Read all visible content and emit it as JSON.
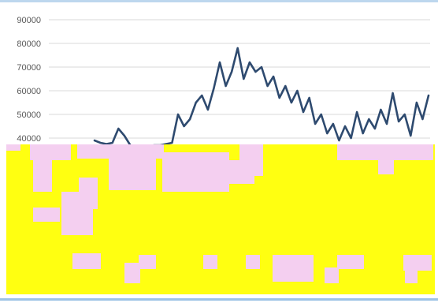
{
  "chart_data": {
    "type": "line",
    "title": "",
    "xlabel": "",
    "ylabel": "",
    "ylim": [
      0,
      90000
    ],
    "yticks": [
      90000,
      80000,
      70000,
      60000,
      50000,
      40000
    ],
    "grid": "horizontal",
    "legend": "none",
    "colors": {
      "line": "#2e4a6f",
      "grid": "#d9d9d9",
      "occluder": "#ffff11",
      "occluder_patches": "#f4cff0"
    },
    "series": [
      {
        "values": [
          39000,
          38000,
          37500,
          38000,
          44000,
          41000,
          37000,
          36500,
          36000,
          36500,
          37000,
          37000,
          37500,
          38000,
          50000,
          45000,
          48000,
          55000,
          58000,
          52000,
          61000,
          72000,
          62000,
          68000,
          78000,
          65000,
          72000,
          68000,
          70000,
          62000,
          66000,
          57000,
          62000,
          55000,
          60000,
          51000,
          57000,
          46000,
          50000,
          42000,
          46000,
          39000,
          45000,
          40000,
          51000,
          42000,
          48000,
          44000,
          52000,
          46000,
          59000,
          47000,
          50000,
          41000,
          55000,
          48000,
          58000
        ]
      }
    ]
  }
}
